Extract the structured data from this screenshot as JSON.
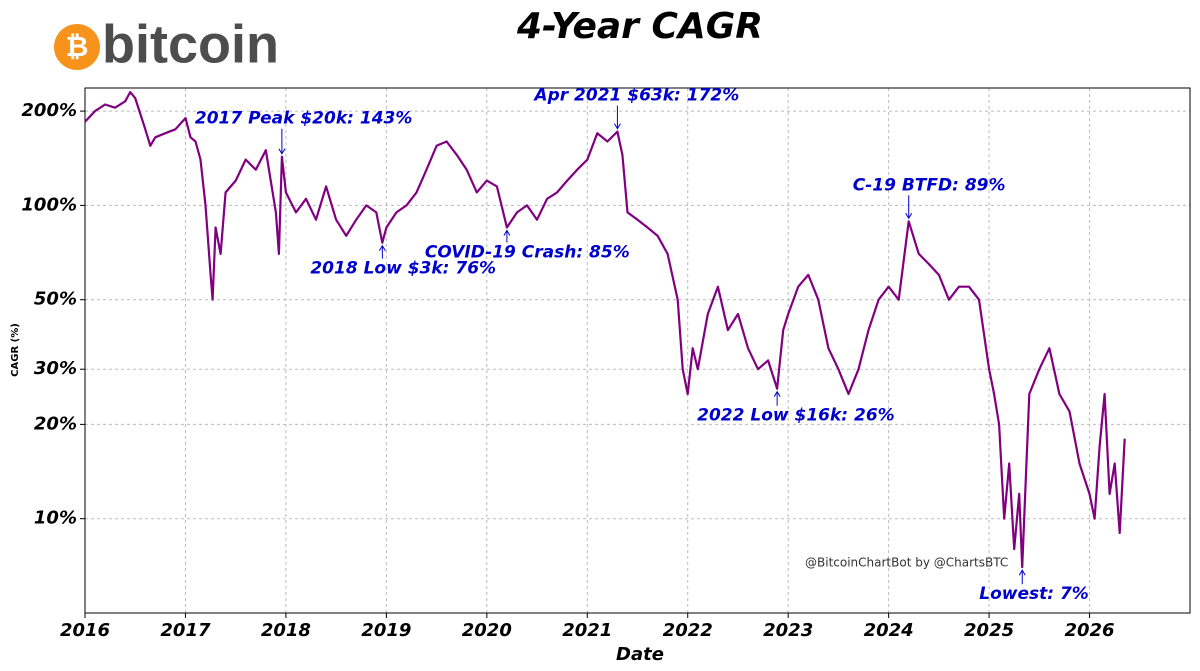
{
  "chart_data": {
    "type": "line",
    "title": "4-Year CAGR",
    "logo_symbol": "₿",
    "logo_text": "bitcoin",
    "xlabel": "Date",
    "ylabel": "CAGR (%)",
    "watermark": "@BitcoinChartBot by @ChartsBTC",
    "log_y": true,
    "grid": true,
    "xlim": [
      2016,
      2027
    ],
    "xticks": [
      2016,
      2017,
      2018,
      2019,
      2020,
      2021,
      2022,
      2023,
      2024,
      2025,
      2026
    ],
    "ylim": [
      5,
      237
    ],
    "yticks": [
      {
        "value": 10,
        "label": "10%"
      },
      {
        "value": 20,
        "label": "20%"
      },
      {
        "value": 30,
        "label": "30%"
      },
      {
        "value": 50,
        "label": "50%"
      },
      {
        "value": 100,
        "label": "100%"
      },
      {
        "value": 200,
        "label": "200%"
      }
    ],
    "x": [
      2016.0,
      2016.1,
      2016.2,
      2016.3,
      2016.4,
      2016.45,
      2016.5,
      2016.6,
      2016.65,
      2016.7,
      2016.8,
      2016.9,
      2017.0,
      2017.05,
      2017.1,
      2017.15,
      2017.2,
      2017.25,
      2017.27,
      2017.3,
      2017.35,
      2017.4,
      2017.5,
      2017.6,
      2017.7,
      2017.8,
      2017.9,
      2017.93,
      2017.96,
      2018.0,
      2018.1,
      2018.2,
      2018.3,
      2018.4,
      2018.5,
      2018.6,
      2018.7,
      2018.8,
      2018.9,
      2018.96,
      2019.0,
      2019.1,
      2019.2,
      2019.3,
      2019.4,
      2019.5,
      2019.6,
      2019.7,
      2019.8,
      2019.9,
      2020.0,
      2020.1,
      2020.2,
      2020.3,
      2020.4,
      2020.5,
      2020.6,
      2020.7,
      2020.8,
      2020.9,
      2021.0,
      2021.1,
      2021.2,
      2021.3,
      2021.35,
      2021.4,
      2021.5,
      2021.6,
      2021.7,
      2021.8,
      2021.9,
      2021.95,
      2022.0,
      2022.05,
      2022.1,
      2022.2,
      2022.3,
      2022.4,
      2022.5,
      2022.6,
      2022.7,
      2022.8,
      2022.89,
      2022.95,
      2023.0,
      2023.1,
      2023.2,
      2023.3,
      2023.4,
      2023.5,
      2023.6,
      2023.7,
      2023.8,
      2023.9,
      2024.0,
      2024.1,
      2024.2,
      2024.3,
      2024.4,
      2024.5,
      2024.6,
      2024.7,
      2024.8,
      2024.9,
      2025.0,
      2025.05,
      2025.1,
      2025.15,
      2025.2,
      2025.25,
      2025.3,
      2025.33,
      2025.4,
      2025.5,
      2025.6,
      2025.7,
      2025.8,
      2025.9,
      2026.0,
      2026.05,
      2026.1,
      2026.15,
      2026.2,
      2026.25,
      2026.3,
      2026.35
    ],
    "series": [
      {
        "name": "CAGR",
        "color": "#800080",
        "values": [
          185,
          200,
          210,
          205,
          215,
          230,
          220,
          175,
          155,
          165,
          170,
          175,
          190,
          165,
          160,
          140,
          100,
          60,
          50,
          85,
          70,
          110,
          120,
          140,
          130,
          150,
          95,
          70,
          143,
          110,
          95,
          105,
          90,
          115,
          90,
          80,
          90,
          100,
          95,
          76,
          85,
          95,
          100,
          110,
          130,
          155,
          160,
          145,
          130,
          110,
          120,
          115,
          85,
          95,
          100,
          90,
          105,
          110,
          120,
          130,
          140,
          170,
          160,
          172,
          145,
          95,
          90,
          85,
          80,
          70,
          50,
          30,
          25,
          35,
          30,
          45,
          55,
          40,
          45,
          35,
          30,
          32,
          26,
          40,
          45,
          55,
          60,
          50,
          35,
          30,
          25,
          30,
          40,
          50,
          55,
          50,
          89,
          70,
          65,
          60,
          50,
          55,
          55,
          50,
          30,
          25,
          20,
          10,
          15,
          8,
          12,
          7,
          25,
          30,
          35,
          25,
          22,
          15,
          12,
          10,
          17,
          25,
          12,
          15,
          9,
          18
        ]
      }
    ],
    "annotations": [
      {
        "text": "2017 Peak $20k: 143%",
        "x": 2017.96,
        "y": 143
      },
      {
        "text": "2018 Low $3k: 76%",
        "x": 2018.96,
        "y": 76
      },
      {
        "text": "COVID-19 Crash: 85%",
        "x": 2020.2,
        "y": 85
      },
      {
        "text": "Apr 2021 $63k: 172%",
        "x": 2021.3,
        "y": 172
      },
      {
        "text": "C-19 BTFD: 89%",
        "x": 2024.2,
        "y": 89
      },
      {
        "text": "2022 Low $16k: 26%",
        "x": 2022.89,
        "y": 26
      },
      {
        "text": "Lowest: 7%",
        "x": 2025.33,
        "y": 7
      }
    ]
  }
}
